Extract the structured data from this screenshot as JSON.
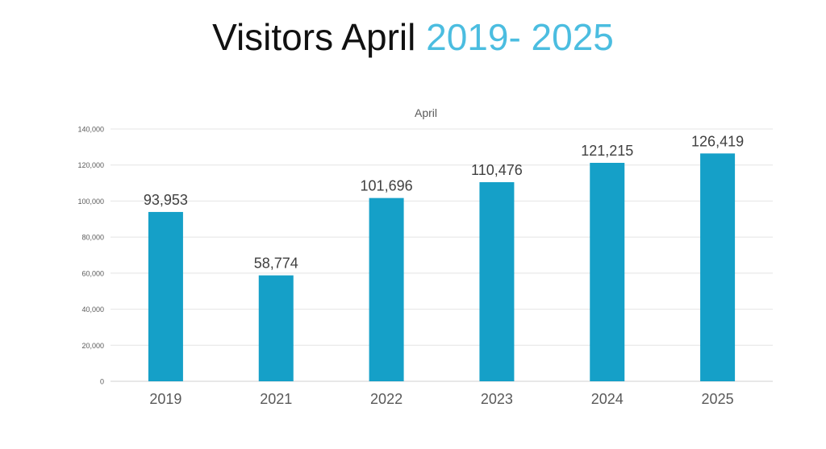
{
  "title": {
    "main": "Visitors April ",
    "accent": "2019- 2025",
    "accent_color": "#4bbde0"
  },
  "chart_data": {
    "type": "bar",
    "title": "April",
    "xlabel": "",
    "ylabel": "",
    "categories": [
      "2019",
      "2021",
      "2022",
      "2023",
      "2024",
      "2025"
    ],
    "values": [
      93953,
      58774,
      101696,
      110476,
      121215,
      126419
    ],
    "value_labels": [
      "93,953",
      "58,774",
      "101,696",
      "110,476",
      "121,215",
      "126,419"
    ],
    "ylim": [
      0,
      140000
    ],
    "yticks": [
      0,
      20000,
      40000,
      60000,
      80000,
      100000,
      120000,
      140000
    ],
    "ytick_labels": [
      "0",
      "20,000",
      "40,000",
      "60,000",
      "80,000",
      "100,000",
      "120,000",
      "140,000"
    ],
    "grid": true,
    "legend": "none",
    "bar_color": "#15a0c8"
  }
}
